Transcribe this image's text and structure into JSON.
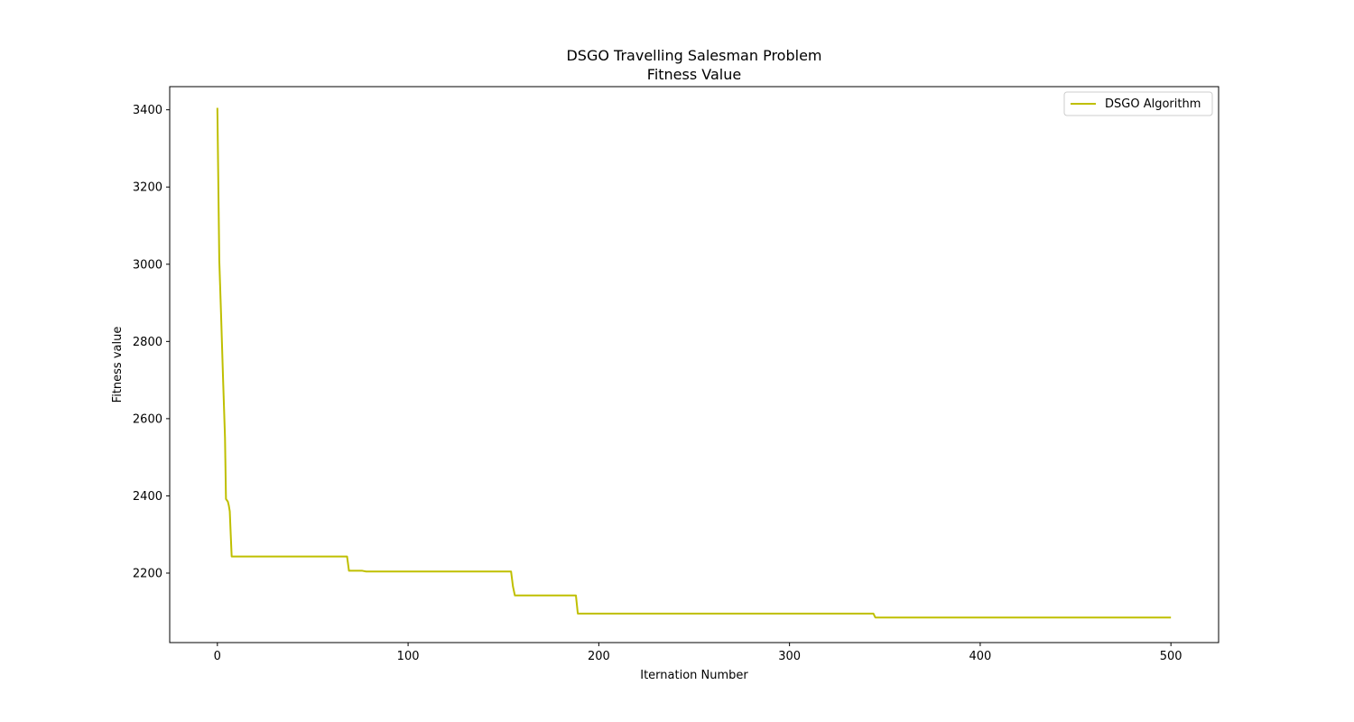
{
  "chart_data": {
    "type": "line",
    "title": "DSGO Travelling Salesman Problem",
    "subtitle": "Fitness Value",
    "xlabel": "Iternation Number",
    "ylabel": "Fitness value",
    "xlim": [
      -25,
      525
    ],
    "ylim": [
      2020,
      3460
    ],
    "xticks": [
      0,
      100,
      200,
      300,
      400,
      500
    ],
    "yticks": [
      2200,
      2400,
      2600,
      2800,
      3000,
      3200,
      3400
    ],
    "grid": false,
    "legend_position": "upper-right",
    "series": [
      {
        "name": "DSGO Algorithm",
        "color": "#bfbf00",
        "points": [
          [
            0,
            3405
          ],
          [
            1,
            3010
          ],
          [
            2,
            2860
          ],
          [
            3,
            2700
          ],
          [
            4,
            2550
          ],
          [
            4.5,
            2392
          ],
          [
            5.5,
            2385
          ],
          [
            6,
            2375
          ],
          [
            6.5,
            2360
          ],
          [
            7,
            2300
          ],
          [
            7.5,
            2243
          ],
          [
            68,
            2243
          ],
          [
            69,
            2206
          ],
          [
            76,
            2206
          ],
          [
            78,
            2204
          ],
          [
            154,
            2204
          ],
          [
            155,
            2165
          ],
          [
            156,
            2142
          ],
          [
            188,
            2142
          ],
          [
            189,
            2095
          ],
          [
            344,
            2095
          ],
          [
            345,
            2085
          ],
          [
            500,
            2085
          ]
        ]
      }
    ]
  }
}
